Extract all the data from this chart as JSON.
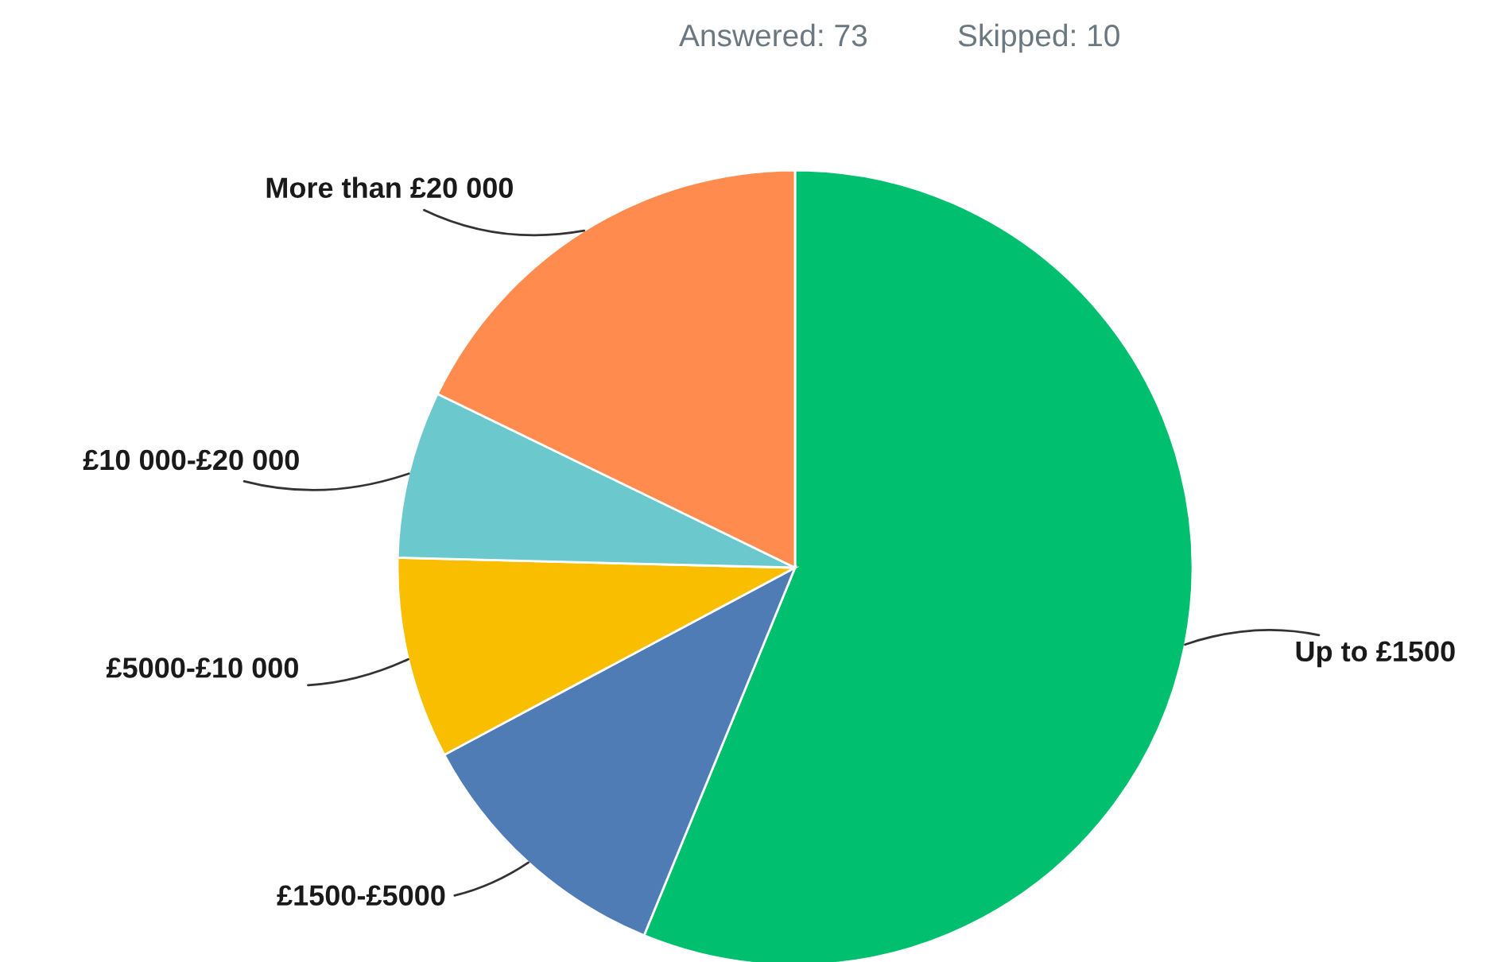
{
  "chart_data": {
    "type": "pie",
    "categories": [
      "Up to £1500",
      "£1500-£5000",
      "£5000-£10 000",
      "£10 000-£20 000",
      "More than £20 000"
    ],
    "values": [
      56.2,
      11.0,
      8.2,
      6.8,
      17.8
    ],
    "colors": [
      "#00bf6f",
      "#507cb6",
      "#f9be00",
      "#6bc8cd",
      "#ff8b4f"
    ],
    "annotations": [
      "Answered: 73",
      "Skipped: 10"
    ]
  }
}
